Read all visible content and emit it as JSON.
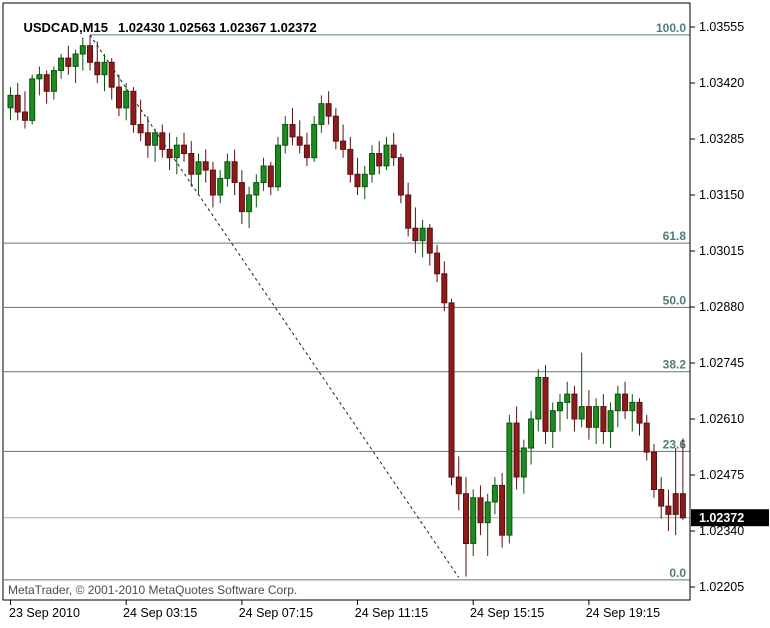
{
  "window": {
    "title_symbol": "USDCAD,M15",
    "title_ohlc": "1.02430 1.02563 1.02367 1.02372",
    "watermark": "MetaTrader, © 2001-2010 MetaQuotes Software Corp."
  },
  "chart_data": {
    "type": "candlestick",
    "symbol": "USDCAD",
    "timeframe": "M15",
    "last_bar": {
      "open": "1.02430",
      "high": "1.02563",
      "low": "1.02367",
      "close": "1.02372"
    },
    "last_price_label": "1.02372",
    "y_axis": {
      "max": 1.03555,
      "min": 1.02205,
      "tick_labels": [
        "1.03555",
        "1.03420",
        "1.03285",
        "1.03150",
        "1.03015",
        "1.02880",
        "1.02745",
        "1.02610",
        "1.02475",
        "1.02340",
        "1.02205"
      ]
    },
    "x_axis": {
      "tick_labels": [
        {
          "label": "23 Sep 2010",
          "bar": 0
        },
        {
          "label": "24 Sep 03:15",
          "bar": 16
        },
        {
          "label": "24 Sep 07:15",
          "bar": 32
        },
        {
          "label": "24 Sep 11:15",
          "bar": 48
        },
        {
          "label": "24 Sep 15:15",
          "bar": 64
        },
        {
          "label": "24 Sep 19:15",
          "bar": 80
        }
      ]
    },
    "fib_levels": [
      {
        "label": "100.0",
        "price": 1.03536,
        "from_bar": 11
      },
      {
        "label": "61.8",
        "price": 1.03034
      },
      {
        "label": "50.0",
        "price": 1.02879
      },
      {
        "label": "38.2",
        "price": 1.02724
      },
      {
        "label": "23.6",
        "price": 1.02532
      },
      {
        "label": "0.0",
        "price": 1.02222
      }
    ],
    "trendline": {
      "from_bar": 11,
      "from_price": 1.03536,
      "to_bar": 62,
      "to_price": 1.02228,
      "style": "dashed"
    },
    "bid_line_price": 1.02372,
    "colors": {
      "bull": "#1e8b1e",
      "bull_edge": "#0c510c",
      "bear": "#8e1b1b",
      "bear_edge": "#571010",
      "fib": "#537c7c",
      "bid_line": "#a8a8a8",
      "axis_text": "#000000",
      "badge_bg": "#000000",
      "badge_text": "#ffffff",
      "frame": "#000000",
      "trendline": "#222222"
    },
    "candles": [
      [
        1.0336,
        1.0341,
        1.0333,
        1.0339
      ],
      [
        1.0339,
        1.0342,
        1.0333,
        1.0335
      ],
      [
        1.0335,
        1.034,
        1.0331,
        1.0333
      ],
      [
        1.0333,
        1.0344,
        1.0332,
        1.0343
      ],
      [
        1.0343,
        1.0346,
        1.0339,
        1.0344
      ],
      [
        1.0344,
        1.0345,
        1.0337,
        1.034
      ],
      [
        1.034,
        1.0346,
        1.0338,
        1.0345
      ],
      [
        1.0345,
        1.0349,
        1.0343,
        1.0348
      ],
      [
        1.0348,
        1.0351,
        1.0344,
        1.0346
      ],
      [
        1.0346,
        1.035,
        1.0342,
        1.0349
      ],
      [
        1.0349,
        1.0353,
        1.0345,
        1.0351
      ],
      [
        1.0351,
        1.03536,
        1.0345,
        1.0347
      ],
      [
        1.0347,
        1.0352,
        1.0342,
        1.0344
      ],
      [
        1.0344,
        1.0349,
        1.034,
        1.0347
      ],
      [
        1.0347,
        1.0348,
        1.0338,
        1.0341
      ],
      [
        1.0341,
        1.0344,
        1.0334,
        1.0336
      ],
      [
        1.0336,
        1.0342,
        1.0333,
        1.034
      ],
      [
        1.034,
        1.0341,
        1.033,
        1.0332
      ],
      [
        1.0332,
        1.0338,
        1.0328,
        1.033
      ],
      [
        1.033,
        1.0334,
        1.0324,
        1.0327
      ],
      [
        1.0327,
        1.0331,
        1.0323,
        1.033
      ],
      [
        1.033,
        1.0332,
        1.0324,
        1.0326
      ],
      [
        1.0326,
        1.033,
        1.0321,
        1.0324
      ],
      [
        1.0324,
        1.0329,
        1.032,
        1.0327
      ],
      [
        1.0327,
        1.033,
        1.0323,
        1.0325
      ],
      [
        1.0325,
        1.0328,
        1.0317,
        1.032
      ],
      [
        1.032,
        1.0325,
        1.0315,
        1.0323
      ],
      [
        1.0323,
        1.0326,
        1.0318,
        1.0321
      ],
      [
        1.0321,
        1.0323,
        1.0312,
        1.0315
      ],
      [
        1.0315,
        1.0321,
        1.0313,
        1.0319
      ],
      [
        1.0319,
        1.0325,
        1.0317,
        1.0323
      ],
      [
        1.0323,
        1.0326,
        1.0315,
        1.0318
      ],
      [
        1.0318,
        1.0321,
        1.0308,
        1.0311
      ],
      [
        1.0311,
        1.0317,
        1.0307,
        1.0315
      ],
      [
        1.0315,
        1.032,
        1.0312,
        1.0318
      ],
      [
        1.0318,
        1.0324,
        1.0316,
        1.0322
      ],
      [
        1.0322,
        1.0323,
        1.0315,
        1.0317
      ],
      [
        1.0317,
        1.0329,
        1.0316,
        1.0327
      ],
      [
        1.0327,
        1.0334,
        1.0325,
        1.0332
      ],
      [
        1.0332,
        1.0336,
        1.0327,
        1.0329
      ],
      [
        1.0329,
        1.0333,
        1.0325,
        1.0327
      ],
      [
        1.0327,
        1.033,
        1.0322,
        1.0324
      ],
      [
        1.0324,
        1.0334,
        1.0323,
        1.0332
      ],
      [
        1.0332,
        1.0339,
        1.033,
        1.0337
      ],
      [
        1.0337,
        1.034,
        1.0332,
        1.0334
      ],
      [
        1.0334,
        1.0336,
        1.0326,
        1.0328
      ],
      [
        1.0328,
        1.0332,
        1.0324,
        1.0326
      ],
      [
        1.0326,
        1.0329,
        1.0318,
        1.032
      ],
      [
        1.032,
        1.0324,
        1.0315,
        1.0317
      ],
      [
        1.0317,
        1.0322,
        1.0314,
        1.032
      ],
      [
        1.032,
        1.0327,
        1.0318,
        1.0325
      ],
      [
        1.0325,
        1.0328,
        1.032,
        1.0322
      ],
      [
        1.0322,
        1.0329,
        1.0321,
        1.0327
      ],
      [
        1.0327,
        1.033,
        1.0322,
        1.0324
      ],
      [
        1.0324,
        1.0325,
        1.0313,
        1.0315
      ],
      [
        1.0315,
        1.0318,
        1.0305,
        1.0307
      ],
      [
        1.0307,
        1.0312,
        1.0301,
        1.0304
      ],
      [
        1.0304,
        1.0309,
        1.03,
        1.0307
      ],
      [
        1.0307,
        1.0308,
        1.0298,
        1.0301
      ],
      [
        1.0301,
        1.0303,
        1.0294,
        1.0296
      ],
      [
        1.0296,
        1.0299,
        1.0287,
        1.0289
      ],
      [
        1.0289,
        1.029,
        1.0245,
        1.0247
      ],
      [
        1.0247,
        1.0252,
        1.0239,
        1.0243
      ],
      [
        1.0243,
        1.0247,
        1.0223,
        1.0231
      ],
      [
        1.0231,
        1.0244,
        1.0228,
        1.0242
      ],
      [
        1.0242,
        1.0245,
        1.0233,
        1.0236
      ],
      [
        1.0236,
        1.0243,
        1.0228,
        1.0241
      ],
      [
        1.0241,
        1.0247,
        1.0238,
        1.0245
      ],
      [
        1.0245,
        1.0248,
        1.023,
        1.0233
      ],
      [
        1.0233,
        1.0262,
        1.0231,
        1.026
      ],
      [
        1.026,
        1.0264,
        1.0244,
        1.0247
      ],
      [
        1.0247,
        1.0256,
        1.0243,
        1.0254
      ],
      [
        1.0254,
        1.0263,
        1.025,
        1.0261
      ],
      [
        1.0261,
        1.0273,
        1.0258,
        1.0271
      ],
      [
        1.0271,
        1.0274,
        1.0255,
        1.0258
      ],
      [
        1.0258,
        1.0265,
        1.0254,
        1.0263
      ],
      [
        1.0263,
        1.0267,
        1.0258,
        1.0265
      ],
      [
        1.0265,
        1.027,
        1.0261,
        1.0267
      ],
      [
        1.0267,
        1.0269,
        1.0258,
        1.0261
      ],
      [
        1.0261,
        1.0277,
        1.0259,
        1.0264
      ],
      [
        1.0264,
        1.0268,
        1.0256,
        1.0259
      ],
      [
        1.0259,
        1.0266,
        1.0255,
        1.0264
      ],
      [
        1.0264,
        1.0267,
        1.0255,
        1.0258
      ],
      [
        1.0258,
        1.0265,
        1.0254,
        1.0263
      ],
      [
        1.0263,
        1.0269,
        1.0259,
        1.0267
      ],
      [
        1.0267,
        1.027,
        1.0261,
        1.0263
      ],
      [
        1.0263,
        1.0267,
        1.0258,
        1.0265
      ],
      [
        1.0265,
        1.0266,
        1.0257,
        1.026
      ],
      [
        1.026,
        1.0262,
        1.0251,
        1.0253
      ],
      [
        1.0253,
        1.0255,
        1.0242,
        1.0244
      ],
      [
        1.0244,
        1.0247,
        1.0237,
        1.024
      ],
      [
        1.024,
        1.0244,
        1.0234,
        1.0238
      ],
      [
        1.0243,
        1.0254,
        1.0233,
        1.0238
      ],
      [
        1.0243,
        1.02563,
        1.02367,
        1.02372
      ]
    ]
  }
}
